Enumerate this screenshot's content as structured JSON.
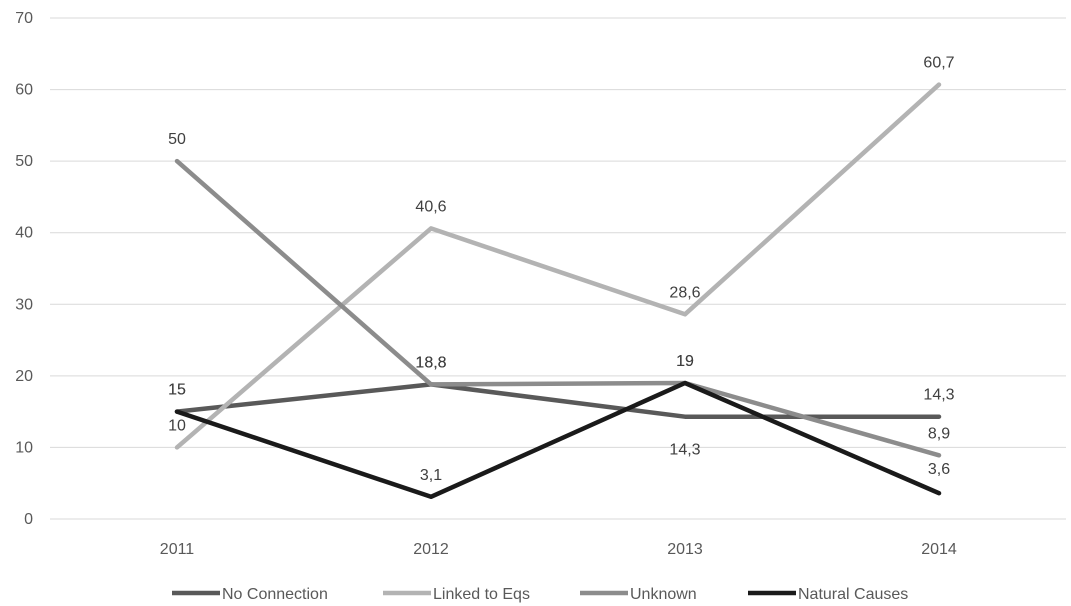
{
  "chart_data": {
    "type": "line",
    "categories": [
      "2011",
      "2012",
      "2013",
      "2014"
    ],
    "ylim": [
      0,
      70
    ],
    "yticks": [
      0,
      10,
      20,
      30,
      40,
      50,
      60,
      70
    ],
    "ytick_labels": [
      "0",
      "10",
      "20",
      "30",
      "40",
      "50",
      "60",
      "70"
    ],
    "grid": true,
    "legend_position": "bottom",
    "series": [
      {
        "name": "No Connection",
        "color": "#595959",
        "values": [
          15,
          18.8,
          14.3,
          14.3
        ],
        "labels": [
          "15",
          "18,8",
          "14,3",
          "14,3"
        ]
      },
      {
        "name": "Linked to Eqs",
        "color": "#b3b3b3",
        "values": [
          10,
          40.6,
          28.6,
          60.7
        ],
        "labels": [
          "10",
          "40,6",
          "28,6",
          "60,7"
        ]
      },
      {
        "name": "Unknown",
        "color": "#8c8c8c",
        "values": [
          50,
          18.8,
          19,
          8.9
        ],
        "labels": [
          "50",
          "18,8",
          "19",
          "8,9"
        ]
      },
      {
        "name": "Natural Causes",
        "color": "#1a1a1a",
        "values": [
          15,
          3.1,
          19,
          3.6
        ],
        "labels": [
          "15",
          "3,1",
          "19",
          "3,6"
        ]
      }
    ]
  }
}
